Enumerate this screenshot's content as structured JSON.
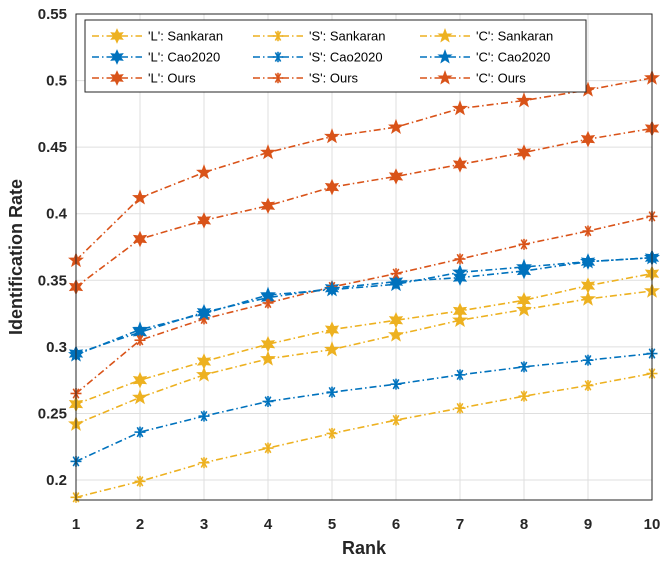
{
  "chart_data": {
    "type": "line",
    "title": "",
    "xlabel": "Rank",
    "ylabel": "Identification Rate",
    "xlim": [
      1,
      10
    ],
    "ylim": [
      0.185,
      0.55
    ],
    "x": [
      1,
      2,
      3,
      4,
      5,
      6,
      7,
      8,
      9,
      10
    ],
    "x_ticks": [
      "1",
      "2",
      "3",
      "4",
      "5",
      "6",
      "7",
      "8",
      "9",
      "10"
    ],
    "y_ticks": [
      "0.2",
      "0.25",
      "0.3",
      "0.35",
      "0.4",
      "0.45",
      "0.5",
      "0.55"
    ],
    "grid": true,
    "legend_position": "top-left",
    "colors": {
      "Sankaran": "#EDB120",
      "Cao2020": "#0072BD",
      "Ours": "#D95319"
    },
    "series": [
      {
        "name": "'L': Sankaran",
        "method": "Sankaran",
        "marker": "star6",
        "values": [
          0.257,
          0.275,
          0.289,
          0.302,
          0.313,
          0.32,
          0.327,
          0.335,
          0.346,
          0.355
        ]
      },
      {
        "name": "'L': Cao2020",
        "method": "Cao2020",
        "marker": "star6",
        "values": [
          0.295,
          0.311,
          0.326,
          0.337,
          0.344,
          0.349,
          0.352,
          0.357,
          0.364,
          0.367
        ]
      },
      {
        "name": "'L': Ours",
        "method": "Ours",
        "marker": "star6",
        "values": [
          0.345,
          0.381,
          0.395,
          0.406,
          0.42,
          0.428,
          0.437,
          0.446,
          0.456,
          0.464
        ]
      },
      {
        "name": "'S': Sankaran",
        "method": "Sankaran",
        "marker": "asterisk",
        "values": [
          0.187,
          0.199,
          0.213,
          0.224,
          0.235,
          0.245,
          0.254,
          0.263,
          0.271,
          0.28
        ]
      },
      {
        "name": "'S': Cao2020",
        "method": "Cao2020",
        "marker": "asterisk",
        "values": [
          0.214,
          0.236,
          0.248,
          0.259,
          0.266,
          0.272,
          0.279,
          0.285,
          0.29,
          0.295
        ]
      },
      {
        "name": "'S': Ours",
        "method": "Ours",
        "marker": "asterisk",
        "values": [
          0.265,
          0.305,
          0.321,
          0.333,
          0.345,
          0.355,
          0.366,
          0.377,
          0.387,
          0.398
        ]
      },
      {
        "name": "'C': Sankaran",
        "method": "Sankaran",
        "marker": "star5",
        "values": [
          0.242,
          0.262,
          0.279,
          0.291,
          0.298,
          0.309,
          0.32,
          0.328,
          0.336,
          0.342
        ]
      },
      {
        "name": "'C': Cao2020",
        "method": "Cao2020",
        "marker": "star5",
        "values": [
          0.294,
          0.313,
          0.325,
          0.339,
          0.343,
          0.347,
          0.356,
          0.36,
          0.364,
          0.367
        ]
      },
      {
        "name": "'C': Ours",
        "method": "Ours",
        "marker": "star5",
        "values": [
          0.365,
          0.412,
          0.431,
          0.446,
          0.458,
          0.465,
          0.479,
          0.485,
          0.493,
          0.502
        ]
      }
    ]
  }
}
